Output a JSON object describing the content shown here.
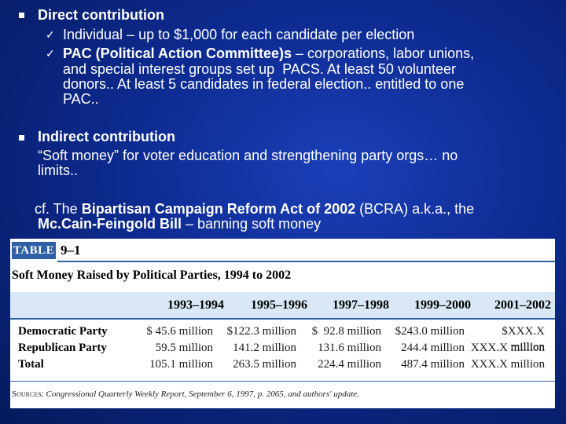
{
  "bullets": [
    {
      "heading": "Direct contribution",
      "subs": [
        {
          "lines": [
            "Individual – up to $1,000 for each candidate per election"
          ]
        },
        {
          "bold_prefix": "PAC (Political Action Committee)s",
          "line1_rest": " – corporations, labor unions,",
          "lines": [
            "and special interest groups set up  PACS. At least 50 volunteer",
            "donors.. At least 5 candidates in federal election.. entitled to one",
            "PAC.."
          ]
        }
      ]
    },
    {
      "heading": "Indirect contribution",
      "lines": [
        "“Soft money” for voter education and strengthening party orgs… no",
        "limits.."
      ]
    }
  ],
  "cf": {
    "prefix": "cf. The ",
    "bold1": "Bipartisan Campaign Reform Act of 2002",
    "mid": " (BCRA) a.k.a., the",
    "bold2": "Mc.Cain-Feingold Bill",
    "suffix": " – banning soft money"
  },
  "table": {
    "badge": "TABLE",
    "number": "9–1",
    "title": "Soft Money Raised by Political Parties, 1994 to 2002",
    "columns": [
      "1993–1994",
      "1995–1996",
      "1997–1998",
      "1999–2000",
      "2001–2002"
    ],
    "rows": [
      {
        "label": "Democratic Party",
        "values": [
          "$ 45.6 million",
          "$122.3 million",
          "$  92.8 million",
          "$243.0 million",
          "$XXX.X million"
        ]
      },
      {
        "label": "Republican Party",
        "values": [
          "59.5 million",
          "141.2 million",
          "131.6 million",
          "244.4 million",
          "XXX.X million"
        ]
      },
      {
        "label": "Total",
        "values": [
          "105.1 million",
          "263.5 million",
          "224.4 million",
          "487.4 million",
          "XXX.X million"
        ]
      }
    ],
    "source_label": "Sources:",
    "source_text": " Congressional Quarterly Weekly Report, September 6, 1997, p. 2065, and authors' update."
  },
  "colors": {
    "background": "#0d2a8f",
    "text": "#ffffff",
    "table_accent": "#2f5fa5",
    "table_band": "#d9e7f6"
  }
}
